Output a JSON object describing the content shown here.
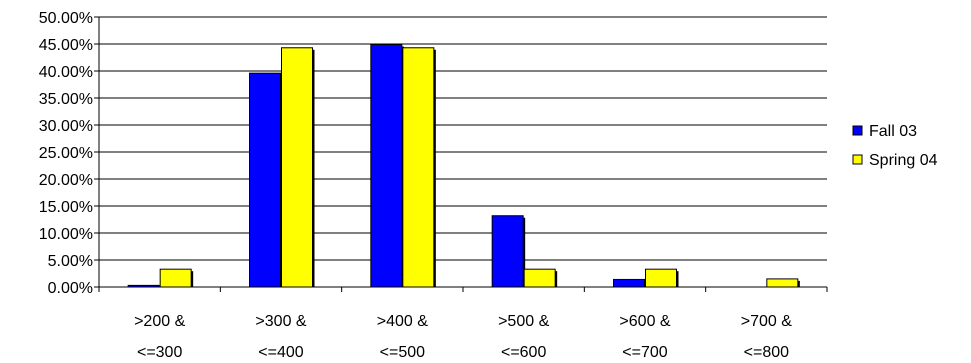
{
  "chart_data": {
    "type": "bar",
    "categories": [
      [
        ">200 &",
        "<=300"
      ],
      [
        ">300 &",
        "<=400"
      ],
      [
        ">400 &",
        "<=500"
      ],
      [
        ">500 &",
        "<=600"
      ],
      [
        ">600 &",
        "<=700"
      ],
      [
        ">700 &",
        "<=800"
      ]
    ],
    "series": [
      {
        "name": "Fall 03",
        "color": "#0000FF",
        "values": [
          0.3,
          39.6,
          44.9,
          13.2,
          1.4,
          0.0
        ]
      },
      {
        "name": "Spring 04",
        "color": "#FFFF00",
        "values": [
          3.3,
          44.3,
          44.3,
          3.3,
          3.3,
          1.5
        ]
      }
    ],
    "ylim": [
      0,
      50
    ],
    "yticks": [
      "0.00%",
      "5.00%",
      "10.00%",
      "15.00%",
      "20.00%",
      "25.00%",
      "30.00%",
      "35.00%",
      "40.00%",
      "45.00%",
      "50.00%"
    ],
    "grid": true,
    "legend": "right",
    "title": "",
    "xlabel": "",
    "ylabel": ""
  }
}
